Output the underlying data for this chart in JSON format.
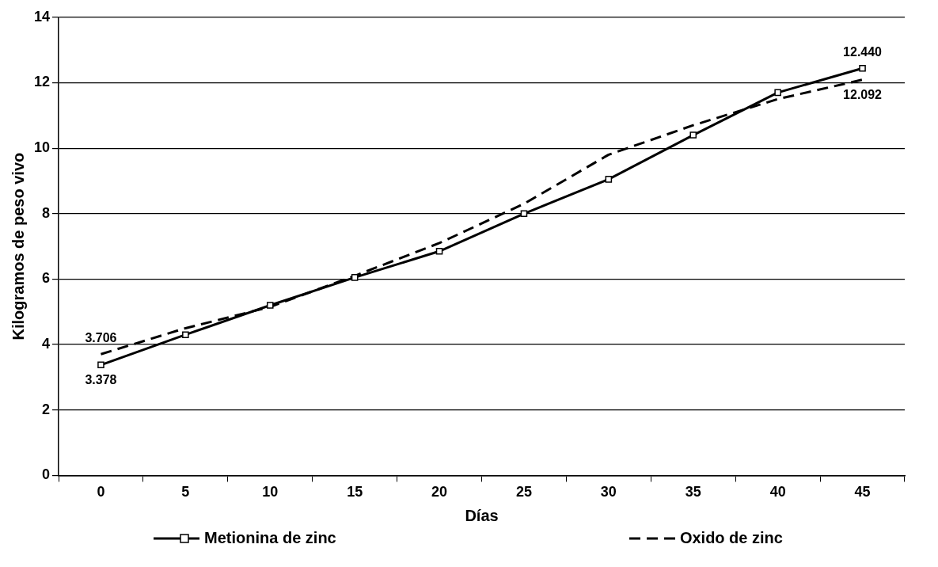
{
  "chart_data": {
    "type": "line",
    "xlabel": "Días",
    "ylabel": "Kilogramos de peso vivo",
    "categories": [
      "0",
      "5",
      "10",
      "15",
      "20",
      "25",
      "30",
      "35",
      "40",
      "45"
    ],
    "ylim": [
      0,
      14
    ],
    "yticks": [
      0,
      2,
      4,
      6,
      8,
      10,
      12,
      14
    ],
    "grid": "y",
    "legend": "bottom",
    "series": [
      {
        "name": "Metionina de zinc",
        "color": "#000000",
        "line_style": "solid",
        "marker": "square",
        "values": [
          3.378,
          4.3,
          5.2,
          6.05,
          6.85,
          8.0,
          9.05,
          10.4,
          11.7,
          12.44
        ],
        "value_labels": [
          "3.378",
          null,
          null,
          null,
          null,
          null,
          null,
          null,
          null,
          "12.440"
        ]
      },
      {
        "name": "Oxido de zinc",
        "color": "#000000",
        "line_style": "dashed",
        "marker": "none",
        "values": [
          3.706,
          4.5,
          5.15,
          6.1,
          7.1,
          8.3,
          9.8,
          10.7,
          11.5,
          12.092
        ],
        "value_labels": [
          "3.706",
          null,
          null,
          null,
          null,
          null,
          null,
          null,
          null,
          "12.092"
        ]
      }
    ]
  }
}
